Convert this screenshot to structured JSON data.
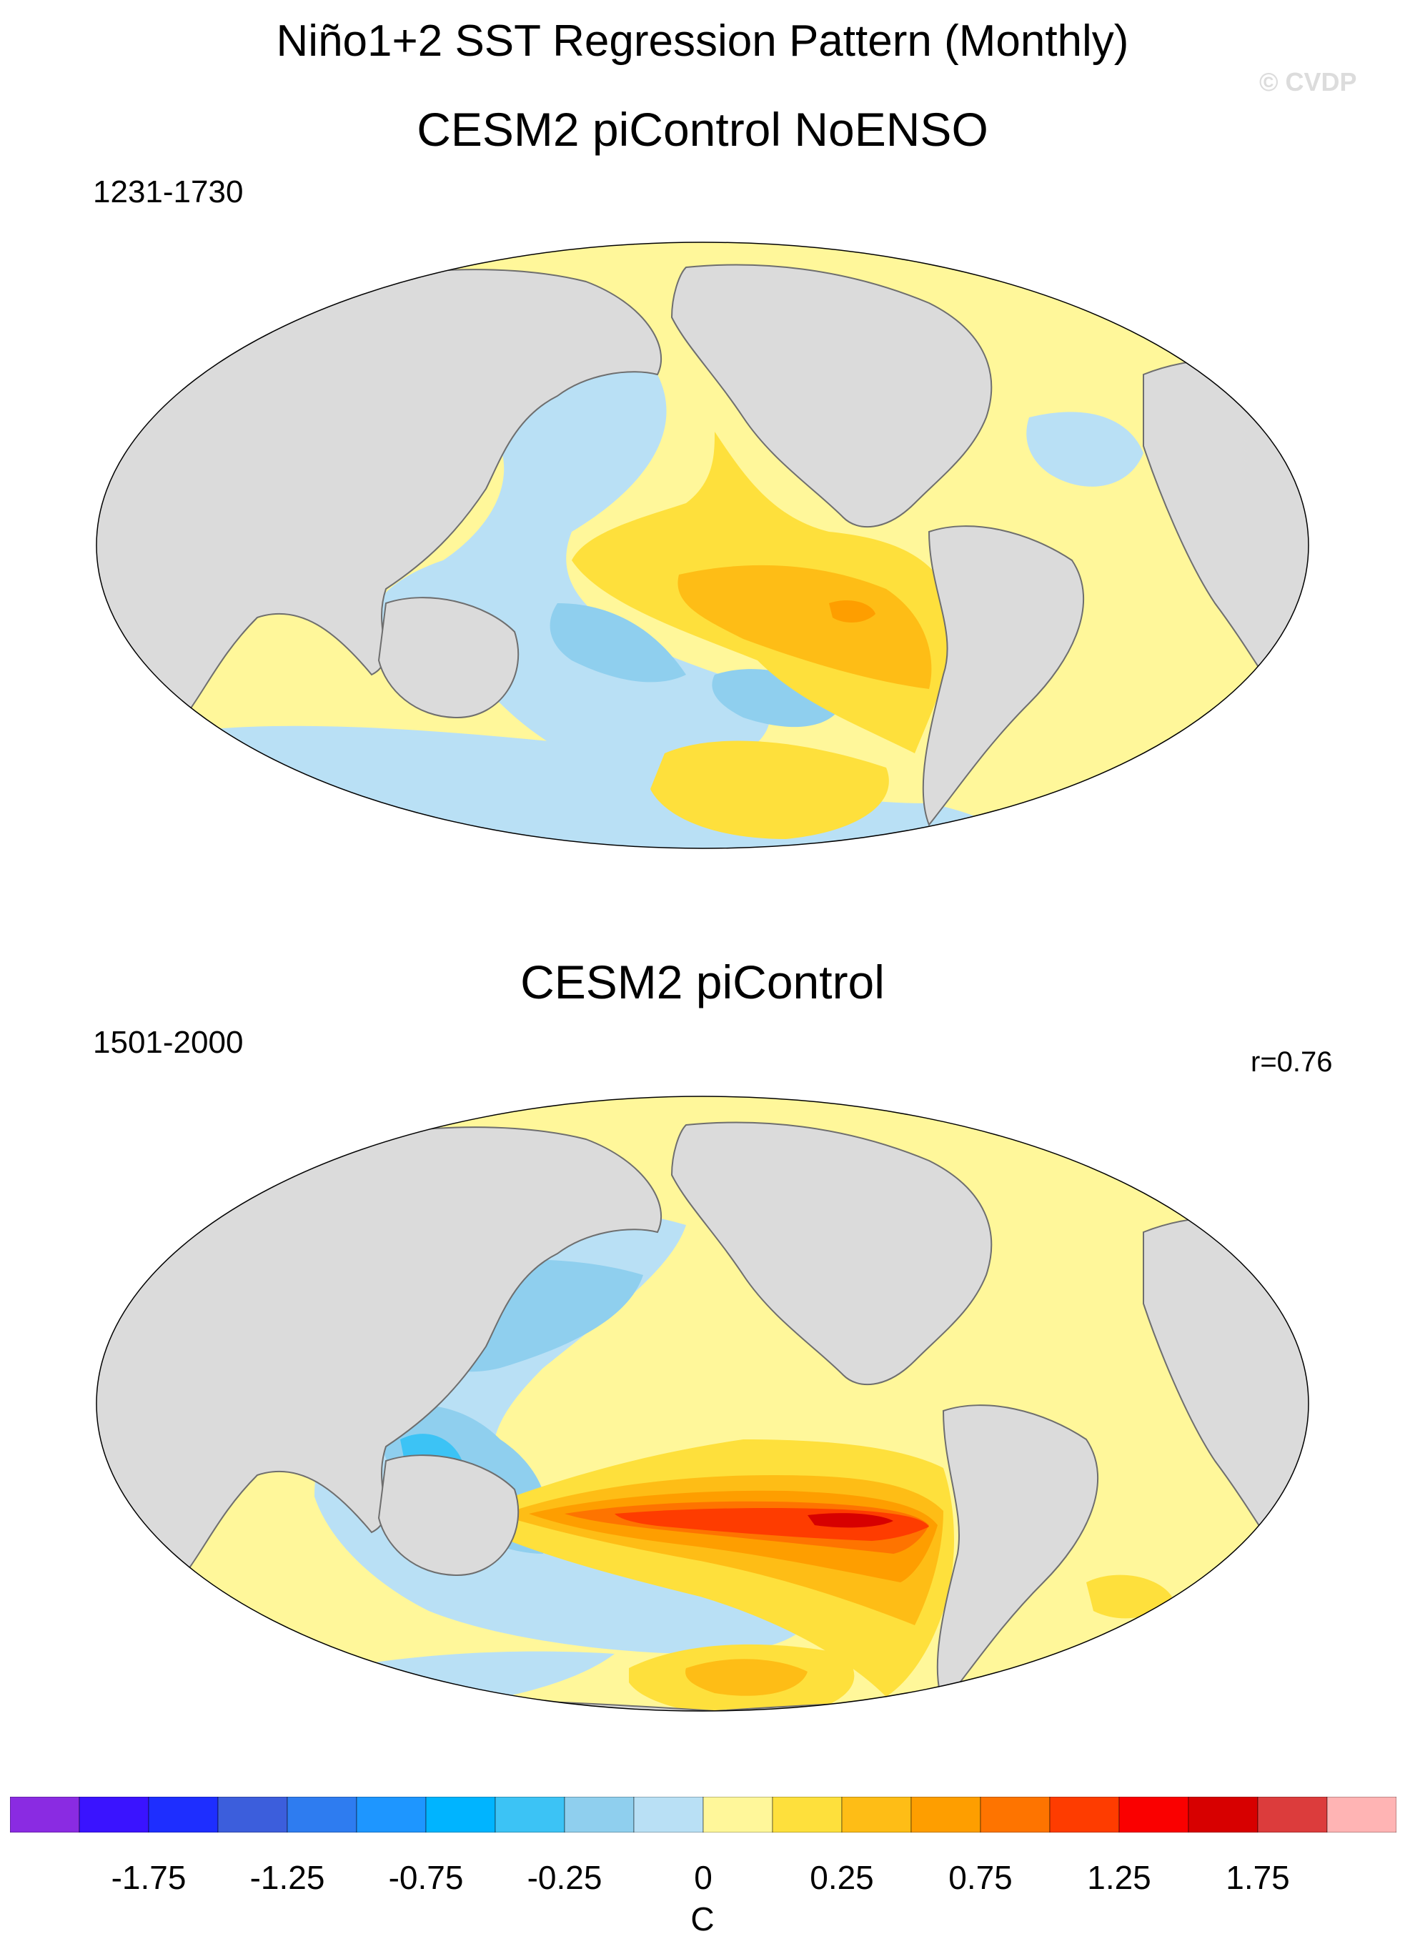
{
  "title": "Niño1+2 SST Regression Pattern (Monthly)",
  "watermark": "© CVDP",
  "colors": {
    "land": "#dbdbdb",
    "coast": "#6e6e6e",
    "neutral_warm": "#fff79a",
    "neutral_cool": "#b9e0f5"
  },
  "panels": [
    {
      "title": "CESM2 piControl NoENSO",
      "period": "1231-1730",
      "pattern_correlation": ""
    },
    {
      "title": "CESM2 piControl",
      "period": "1501-2000",
      "pattern_correlation": "r=0.76"
    }
  ],
  "colorbar": {
    "units": "C",
    "tick_labels": [
      "-1.75",
      "-1.25",
      "-0.75",
      "-0.25",
      "0",
      "0.25",
      "0.75",
      "1.25",
      "1.75"
    ],
    "colors": [
      "#8a2be2",
      "#3a13ff",
      "#1e2eff",
      "#3c5edc",
      "#2e7cf0",
      "#1e96ff",
      "#00b4ff",
      "#3cc3f5",
      "#8fcfee",
      "#b9e0f5",
      "#fff79a",
      "#fee03c",
      "#febd16",
      "#fe9e00",
      "#fe7400",
      "#fe3c00",
      "#fa0000",
      "#d70000",
      "#dc3c3c",
      "#ffb4b4"
    ]
  }
}
